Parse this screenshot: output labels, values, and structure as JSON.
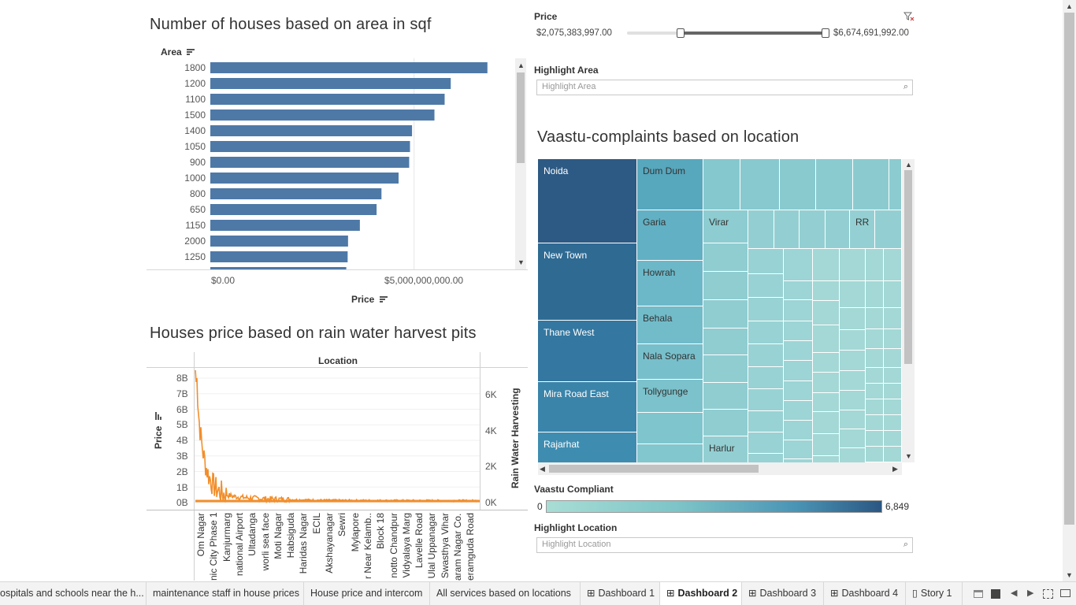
{
  "bar_chart": {
    "title": "Number of houses based on area in sqf",
    "y_field_label": "Area",
    "x_field_label": "Price",
    "x_ticks": [
      "$0.00",
      "$5,000,000,000.00"
    ],
    "color": "#4e79a7"
  },
  "line_chart": {
    "title": "Houses price based on rain water harvest pits",
    "top_header": "Location",
    "left_axis_label": "Price",
    "right_axis_label": "Rain Water Harvesting",
    "left_ticks": [
      "8B",
      "7B",
      "6B",
      "5B",
      "4B",
      "3B",
      "2B",
      "1B",
      "0B"
    ],
    "right_ticks": [
      "6K",
      "4K",
      "2K",
      "0K"
    ],
    "locations": [
      "Om Nagar",
      "nic City Phase 1",
      "Kanjurmarg",
      "national Airport",
      "Ultadanga",
      "worli sea face",
      "Moti Nagar",
      "Habsiguda",
      "Haridas Nagar",
      "ECIL",
      "Akshayanagar",
      "Sewri",
      "Mylapore",
      "r Near Kelamb..",
      "Block 18",
      "notto Chandpur",
      "Vidyalaya Marg",
      "Lavelle Road",
      "Ulal Uppanagar",
      "Swasthya Vihar",
      "aram Nagar Co..",
      "eramguda Road"
    ],
    "color": "#f28e2b"
  },
  "price_filter": {
    "label": "Price",
    "min_value": "$2,075,383,997.00",
    "max_value": "$6,674,691,992.00",
    "selected_range_fraction": [
      0.27,
      1.0
    ]
  },
  "highlight_area": {
    "label": "Highlight Area",
    "placeholder": "Highlight Area"
  },
  "treemap": {
    "title": "Vaastu-complaints based on location",
    "labels": [
      "Noida",
      "Dum Dum",
      "New Town",
      "Garia",
      "Virar",
      "RR",
      "Howrah",
      "Thane West",
      "Behala",
      "Nala Sopara",
      "Tollygunge",
      "Mira Road East",
      "Rajarhat",
      "Harlur"
    ]
  },
  "vaastu_legend": {
    "label": "Vaastu Compliant",
    "min": "0",
    "max": "6,849",
    "color_low": "#a8ddd5",
    "color_high": "#2a5783"
  },
  "highlight_location": {
    "label": "Highlight Location",
    "placeholder": "Highlight Location"
  },
  "tabs": [
    {
      "label": "ospitals and schools near the h...",
      "icon": "none"
    },
    {
      "label": "maintenance staff in house prices",
      "icon": "none"
    },
    {
      "label": "House price and intercom",
      "icon": "none"
    },
    {
      "label": "All services based on locations",
      "icon": "none"
    },
    {
      "label": "Dashboard 1",
      "icon": "dashboard-icon"
    },
    {
      "label": "Dashboard 2",
      "icon": "dashboard-icon"
    },
    {
      "label": "Dashboard 3",
      "icon": "dashboard-icon"
    },
    {
      "label": "Dashboard 4",
      "icon": "dashboard-icon"
    },
    {
      "label": "Story 1",
      "icon": "story-icon"
    }
  ],
  "chart_data": [
    {
      "type": "bar",
      "title": "Number of houses based on area in sqf",
      "ylabel": "Area",
      "xlabel": "Price",
      "categories": [
        "1800",
        "1200",
        "1100",
        "1500",
        "1400",
        "1050",
        "900",
        "1000",
        "800",
        "650",
        "1150",
        "2000",
        "1250"
      ],
      "values": [
        6800000000,
        5900000000,
        5750000000,
        5500000000,
        4950000000,
        4900000000,
        4880000000,
        4620000000,
        4200000000,
        4080000000,
        3670000000,
        3380000000,
        3370000000
      ],
      "xlim": [
        0,
        7500000000
      ]
    },
    {
      "type": "line",
      "title": "Houses price based on rain water harvest pits",
      "xlabel": "Location",
      "ylabel": "Price",
      "ylim": [
        0,
        8000000000
      ],
      "y2label": "Rain Water Harvesting",
      "y2lim": [
        0,
        7000
      ],
      "series": [
        {
          "name": "Price",
          "values": [
            8000000000,
            2500000000,
            1000000000,
            700000000,
            500000000,
            400000000,
            300000000,
            250000000,
            200000000,
            180000000,
            150000000,
            140000000,
            130000000,
            120000000,
            110000000,
            100000000,
            100000000,
            90000000,
            90000000,
            80000000,
            80000000,
            80000000
          ]
        }
      ]
    }
  ]
}
